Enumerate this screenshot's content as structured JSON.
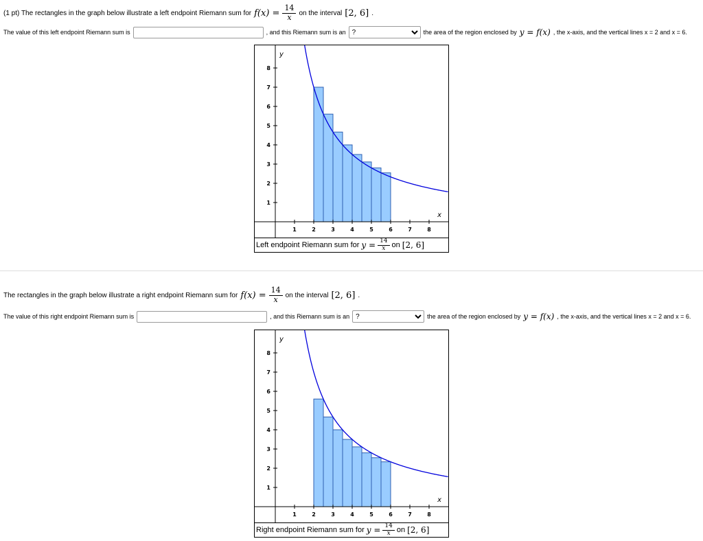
{
  "colors": {
    "curve": "#0000dd",
    "bar_fill": "#99ccff",
    "bar_stroke": "#3060b0",
    "divider": "#dddddd"
  },
  "problem1": {
    "intro": {
      "prefix": "(1 pt) The rectangles in the graph below illustrate a left endpoint Riemann sum for",
      "fx_lhs": "f(x) =",
      "frac_num": "14",
      "frac_den": "x",
      "mid": "on the interval",
      "interval": "[2, 6]",
      "period": "."
    },
    "answer": {
      "label": "The value of this left endpoint Riemann sum is",
      "input_value": "",
      "between": ", and this Riemann sum is an",
      "select_value": "?",
      "tail_prefix": "the area of the region enclosed by",
      "tail_math": "y = f(x)",
      "tail_suffix": ", the x-axis, and the vertical lines x = 2 and x = 6."
    },
    "caption": {
      "prefix": "Left endpoint Riemann sum for",
      "y_eq": "y =",
      "frac_num": "14",
      "frac_den": "x",
      "on": "on",
      "interval": "[2, 6]"
    }
  },
  "problem2": {
    "intro": {
      "prefix": "The rectangles in the graph below illustrate a right endpoint Riemann sum for",
      "fx_lhs": "f(x) =",
      "frac_num": "14",
      "frac_den": "x",
      "mid": "on the interval",
      "interval": "[2, 6]",
      "period": "."
    },
    "answer": {
      "label": "The value of this right endpoint Riemann sum is",
      "input_value": "",
      "between": ", and this Riemann sum is an",
      "select_value": "?",
      "tail_prefix": "the area of the region enclosed by",
      "tail_math": "y = f(x)",
      "tail_suffix": ", the x-axis, and the vertical lines x = 2 and x = 6."
    },
    "caption": {
      "prefix": "Right endpoint Riemann sum for",
      "y_eq": "y =",
      "frac_num": "14",
      "frac_den": "x",
      "on": "on",
      "interval": "[2, 6]"
    }
  },
  "chart_data": [
    {
      "type": "line",
      "title": "Left endpoint Riemann sum for y = 14/x on [2,6]",
      "function": "y = 14/x",
      "k": 14,
      "xlabel": "x",
      "ylabel": "y",
      "xlim": [
        0,
        9
      ],
      "ylim": [
        0,
        9.2
      ],
      "xticks": [
        1,
        2,
        3,
        4,
        5,
        6,
        7,
        8
      ],
      "yticks": [
        1,
        2,
        3,
        4,
        5,
        6,
        7,
        8
      ],
      "grid": false,
      "riemann": {
        "endpoint": "left",
        "interval": [
          2,
          6
        ],
        "n": 8,
        "dx": 0.5,
        "left_edges": [
          2,
          2.5,
          3,
          3.5,
          4,
          4.5,
          5,
          5.5
        ],
        "heights": [
          7,
          5.6,
          4.6667,
          4,
          3.5,
          3.1111,
          2.8,
          2.5455
        ]
      }
    },
    {
      "type": "line",
      "title": "Right endpoint Riemann sum for y = 14/x on [2,6]",
      "function": "y = 14/x",
      "k": 14,
      "xlabel": "x",
      "ylabel": "y",
      "xlim": [
        0,
        9
      ],
      "ylim": [
        0,
        9.2
      ],
      "xticks": [
        1,
        2,
        3,
        4,
        5,
        6,
        7,
        8
      ],
      "yticks": [
        1,
        2,
        3,
        4,
        5,
        6,
        7,
        8
      ],
      "grid": false,
      "riemann": {
        "endpoint": "right",
        "interval": [
          2,
          6
        ],
        "n": 8,
        "dx": 0.5,
        "left_edges": [
          2,
          2.5,
          3,
          3.5,
          4,
          4.5,
          5,
          5.5
        ],
        "heights": [
          5.6,
          4.6667,
          4,
          3.5,
          3.1111,
          2.8,
          2.5455,
          2.3333
        ]
      }
    }
  ]
}
